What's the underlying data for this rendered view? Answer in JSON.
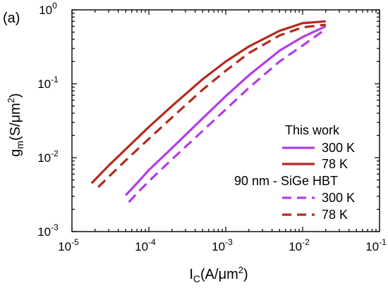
{
  "chart_data": {
    "type": "line",
    "panel_label": "(a)",
    "xlabel": {
      "main": "I",
      "sub": "C",
      "rest": "(A/μm",
      "sup": "2",
      "close": ")"
    },
    "ylabel": {
      "main": "g",
      "sub": "m",
      "rest": "(S/μm",
      "sup": "2",
      "close": ")"
    },
    "xscale": "log",
    "yscale": "log",
    "xlim": [
      1e-05,
      0.1
    ],
    "ylim": [
      0.001,
      1
    ],
    "x_ticks": [
      {
        "value": 1e-05,
        "base": "10",
        "exp": "-5"
      },
      {
        "value": 0.0001,
        "base": "10",
        "exp": "-4"
      },
      {
        "value": 0.001,
        "base": "10",
        "exp": "-3"
      },
      {
        "value": 0.01,
        "base": "10",
        "exp": "-2"
      },
      {
        "value": 0.1,
        "base": "10",
        "exp": "-1"
      }
    ],
    "y_ticks": [
      {
        "value": 0.001,
        "base": "10",
        "exp": "-3"
      },
      {
        "value": 0.01,
        "base": "10",
        "exp": "-2"
      },
      {
        "value": 0.1,
        "base": "10",
        "exp": "-1"
      },
      {
        "value": 1,
        "base": "10",
        "exp": "0"
      }
    ],
    "grid": false,
    "legend": {
      "placement": "bottom-right",
      "groups": [
        {
          "title": "This work",
          "entries": [
            {
              "label": "300 K",
              "series": 0
            },
            {
              "label": "78 K",
              "series": 1
            }
          ]
        },
        {
          "title": "90 nm - SiGe HBT",
          "entries": [
            {
              "label": "300 K",
              "series": 2
            },
            {
              "label": "78 K",
              "series": 3
            }
          ]
        }
      ]
    },
    "series": [
      {
        "color": "#b23ee8",
        "dash": "solid",
        "x": [
          5e-05,
          7e-05,
          0.0001,
          0.0002,
          0.0005,
          0.001,
          0.002,
          0.005,
          0.01,
          0.02
        ],
        "y": [
          0.0031,
          0.0045,
          0.0068,
          0.0135,
          0.034,
          0.068,
          0.13,
          0.28,
          0.43,
          0.6
        ]
      },
      {
        "color": "#b32a1c",
        "dash": "solid",
        "x": [
          1.8e-05,
          3e-05,
          5e-05,
          0.0001,
          0.0002,
          0.0005,
          0.001,
          0.002,
          0.005,
          0.01,
          0.02
        ],
        "y": [
          0.0045,
          0.0078,
          0.013,
          0.026,
          0.05,
          0.115,
          0.2,
          0.32,
          0.52,
          0.66,
          0.7
        ]
      },
      {
        "color": "#b23ee8",
        "dash": "dashed",
        "x": [
          5.5e-05,
          7e-05,
          0.0001,
          0.0002,
          0.0005,
          0.001,
          0.002,
          0.005,
          0.01,
          0.02
        ],
        "y": [
          0.0025,
          0.0033,
          0.0048,
          0.0095,
          0.023,
          0.045,
          0.088,
          0.2,
          0.33,
          0.55
        ]
      },
      {
        "color": "#b32a1c",
        "dash": "dashed",
        "x": [
          2.2e-05,
          3e-05,
          5e-05,
          0.0001,
          0.0002,
          0.0005,
          0.001,
          0.002,
          0.005,
          0.01,
          0.02
        ],
        "y": [
          0.004,
          0.0055,
          0.0092,
          0.018,
          0.035,
          0.083,
          0.15,
          0.26,
          0.45,
          0.58,
          0.63
        ]
      }
    ]
  }
}
